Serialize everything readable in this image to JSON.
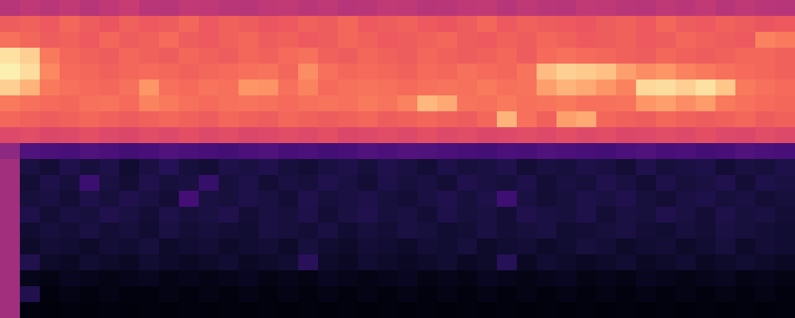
{
  "chart_data": {
    "type": "heatmap",
    "tick_labels": false,
    "zlim": [
      0,
      100
    ],
    "cells": [
      [
        50,
        52,
        51,
        53,
        50,
        52,
        54,
        51,
        50,
        53,
        52,
        51,
        50,
        52,
        53,
        51,
        52,
        50,
        51,
        53,
        52,
        50,
        51,
        52,
        53,
        50,
        52,
        51,
        50,
        53,
        52,
        51,
        50,
        52,
        51,
        53,
        50,
        52,
        51,
        50
      ],
      [
        66,
        67,
        65,
        68,
        66,
        64,
        67,
        65,
        66,
        68,
        65,
        67,
        66,
        64,
        65,
        67,
        66,
        68,
        65,
        66,
        67,
        65,
        64,
        66,
        68,
        65,
        67,
        66,
        65,
        64,
        66,
        67,
        65,
        68,
        66,
        65,
        67,
        66,
        64,
        65
      ],
      [
        70,
        68,
        66,
        67,
        65,
        68,
        66,
        67,
        69,
        66,
        65,
        67,
        68,
        66,
        67,
        65,
        66,
        68,
        67,
        65,
        66,
        67,
        68,
        66,
        65,
        67,
        66,
        68,
        67,
        65,
        66,
        67,
        65,
        66,
        68,
        67,
        66,
        65,
        74,
        72
      ],
      [
        94,
        90,
        72,
        68,
        67,
        66,
        68,
        67,
        66,
        68,
        67,
        66,
        68,
        67,
        69,
        70,
        67,
        66,
        68,
        67,
        66,
        68,
        67,
        66,
        67,
        68,
        66,
        69,
        70,
        69,
        68,
        67,
        66,
        68,
        67,
        66,
        67,
        68,
        68,
        67
      ],
      [
        97,
        93,
        75,
        69,
        68,
        67,
        68,
        69,
        68,
        67,
        68,
        69,
        70,
        71,
        68,
        76,
        70,
        68,
        69,
        68,
        67,
        69,
        68,
        70,
        69,
        68,
        71,
        86,
        90,
        89,
        87,
        80,
        76,
        78,
        74,
        72,
        70,
        69,
        68,
        67
      ],
      [
        90,
        84,
        72,
        70,
        69,
        68,
        70,
        78,
        70,
        69,
        71,
        70,
        78,
        77,
        70,
        74,
        69,
        70,
        71,
        70,
        69,
        70,
        71,
        70,
        72,
        70,
        71,
        80,
        84,
        82,
        78,
        74,
        92,
        93,
        90,
        94,
        88,
        72,
        70,
        69
      ],
      [
        72,
        70,
        69,
        68,
        70,
        71,
        69,
        74,
        72,
        70,
        69,
        70,
        71,
        70,
        69,
        70,
        71,
        70,
        72,
        71,
        74,
        85,
        82,
        71,
        70,
        72,
        70,
        71,
        72,
        70,
        70,
        71,
        78,
        80,
        76,
        79,
        72,
        70,
        69,
        68
      ],
      [
        68,
        67,
        66,
        67,
        68,
        67,
        66,
        67,
        68,
        67,
        66,
        68,
        67,
        66,
        68,
        67,
        66,
        67,
        68,
        66,
        67,
        68,
        67,
        66,
        68,
        84,
        70,
        67,
        80,
        82,
        68,
        67,
        66,
        68,
        67,
        66,
        67,
        68,
        66,
        67
      ],
      [
        60,
        61,
        59,
        60,
        62,
        60,
        59,
        61,
        60,
        62,
        60,
        61,
        59,
        60,
        61,
        60,
        62,
        59,
        60,
        61,
        60,
        62,
        60,
        61,
        59,
        60,
        61,
        60,
        62,
        60,
        61,
        59,
        60,
        61,
        60,
        62,
        60,
        59,
        61,
        60
      ],
      [
        40,
        25,
        24,
        23,
        25,
        24,
        22,
        23,
        25,
        24,
        23,
        22,
        24,
        25,
        23,
        24,
        22,
        23,
        25,
        24,
        26,
        25,
        24,
        23,
        22,
        24,
        23,
        25,
        24,
        23,
        22,
        24,
        25,
        23,
        24,
        22,
        23,
        25,
        24,
        23
      ],
      [
        45,
        12,
        10,
        14,
        11,
        13,
        9,
        12,
        15,
        11,
        10,
        13,
        12,
        14,
        11,
        10,
        12,
        13,
        11,
        14,
        12,
        10,
        13,
        11,
        12,
        14,
        10,
        12,
        11,
        13,
        12,
        10,
        14,
        11,
        12,
        13,
        10,
        12,
        11,
        13
      ],
      [
        45,
        10,
        13,
        11,
        20,
        12,
        10,
        14,
        11,
        12,
        19,
        11,
        13,
        10,
        12,
        11,
        14,
        12,
        10,
        13,
        11,
        12,
        10,
        14,
        12,
        11,
        13,
        10,
        12,
        11,
        14,
        12,
        10,
        13,
        11,
        12,
        14,
        10,
        13,
        12
      ],
      [
        45,
        11,
        12,
        10,
        13,
        11,
        14,
        12,
        10,
        22,
        12,
        11,
        13,
        12,
        10,
        14,
        11,
        12,
        13,
        11,
        10,
        12,
        14,
        11,
        13,
        21,
        12,
        10,
        11,
        13,
        12,
        14,
        11,
        10,
        12,
        13,
        11,
        12,
        10,
        11
      ],
      [
        45,
        13,
        10,
        12,
        11,
        14,
        12,
        10,
        13,
        11,
        12,
        14,
        10,
        12,
        11,
        13,
        10,
        12,
        14,
        11,
        12,
        10,
        13,
        11,
        12,
        10,
        14,
        12,
        11,
        13,
        10,
        12,
        11,
        14,
        12,
        10,
        13,
        11,
        12,
        10
      ],
      [
        45,
        9,
        11,
        10,
        12,
        10,
        11,
        9,
        12,
        10,
        11,
        10,
        9,
        12,
        11,
        10,
        12,
        9,
        11,
        10,
        12,
        11,
        9,
        10,
        12,
        10,
        11,
        12,
        9,
        10,
        11,
        12,
        10,
        9,
        11,
        10,
        12,
        11,
        10,
        9
      ],
      [
        45,
        8,
        10,
        9,
        8,
        10,
        9,
        11,
        8,
        9,
        10,
        8,
        9,
        10,
        8,
        11,
        9,
        8,
        10,
        9,
        8,
        10,
        9,
        11,
        8,
        9,
        10,
        8,
        9,
        11,
        10,
        8,
        9,
        10,
        8,
        9,
        11,
        8,
        10,
        9
      ],
      [
        45,
        14,
        8,
        7,
        9,
        8,
        7,
        9,
        8,
        7,
        8,
        9,
        7,
        8,
        9,
        16,
        8,
        7,
        9,
        8,
        7,
        8,
        9,
        7,
        8,
        15,
        7,
        9,
        8,
        7,
        8,
        9,
        7,
        8,
        9,
        7,
        8,
        9,
        8,
        7
      ],
      [
        45,
        5,
        4,
        6,
        5,
        4,
        5,
        6,
        4,
        5,
        4,
        5,
        6,
        4,
        5,
        4,
        6,
        5,
        4,
        5,
        6,
        4,
        5,
        4,
        6,
        5,
        4,
        5,
        6,
        4,
        5,
        4,
        6,
        5,
        4,
        5,
        6,
        4,
        5,
        4
      ],
      [
        45,
        14,
        3,
        4,
        3,
        4,
        3,
        3,
        4,
        3,
        4,
        3,
        4,
        3,
        4,
        3,
        4,
        3,
        4,
        3,
        4,
        3,
        4,
        3,
        4,
        3,
        4,
        3,
        4,
        3,
        4,
        3,
        4,
        3,
        4,
        3,
        4,
        3,
        4,
        3
      ],
      [
        45,
        3,
        2,
        3,
        2,
        3,
        2,
        3,
        2,
        3,
        2,
        3,
        2,
        3,
        2,
        3,
        2,
        3,
        2,
        3,
        2,
        3,
        2,
        3,
        2,
        3,
        2,
        3,
        2,
        3,
        2,
        3,
        2,
        3,
        2,
        3,
        2,
        3,
        2,
        3
      ]
    ]
  }
}
